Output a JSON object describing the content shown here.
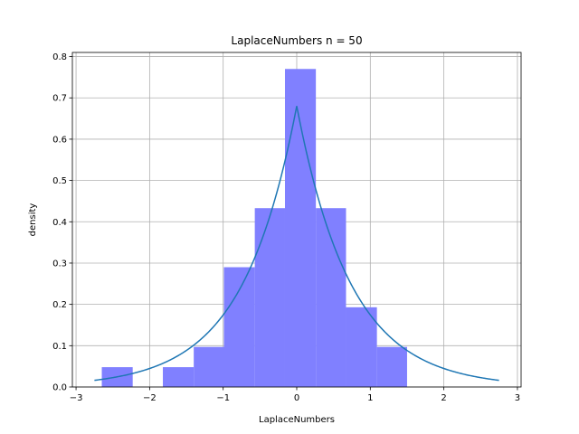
{
  "chart_data": {
    "type": "histogram",
    "title": "LaplaceNumbers n = 50",
    "xlabel": "LaplaceNumbers",
    "ylabel": "density",
    "xlim": [
      -3.05,
      3.05
    ],
    "ylim": [
      0,
      0.81
    ],
    "xticks": [
      -3,
      -2,
      -1,
      0,
      1,
      2,
      3
    ],
    "yticks": [
      0.0,
      0.1,
      0.2,
      0.3,
      0.4,
      0.5,
      0.6,
      0.7,
      0.8
    ],
    "grid": true,
    "bins": [
      {
        "x0": -2.65,
        "x1": -2.23,
        "density": 0.048
      },
      {
        "x0": -2.23,
        "x1": -1.82,
        "density": 0.0
      },
      {
        "x0": -1.82,
        "x1": -1.4,
        "density": 0.048
      },
      {
        "x0": -1.4,
        "x1": -0.99,
        "density": 0.097
      },
      {
        "x0": -0.99,
        "x1": -0.57,
        "density": 0.29
      },
      {
        "x0": -0.57,
        "x1": -0.16,
        "density": 0.433
      },
      {
        "x0": -0.16,
        "x1": 0.26,
        "density": 0.77
      },
      {
        "x0": 0.26,
        "x1": 0.67,
        "density": 0.433
      },
      {
        "x0": 0.67,
        "x1": 1.09,
        "density": 0.193
      },
      {
        "x0": 1.09,
        "x1": 1.5,
        "density": 0.097
      }
    ],
    "bar_color": "#8080ff",
    "curve": {
      "type": "laplace-pdf",
      "mu": 0,
      "b": 0.735,
      "x_range": [
        -2.75,
        2.75
      ],
      "color": "#1f77b4"
    }
  }
}
